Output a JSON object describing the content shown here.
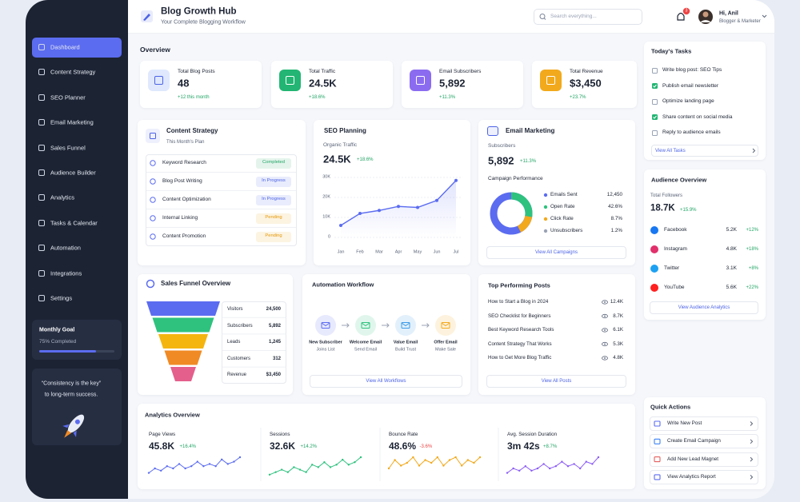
{
  "header": {
    "title": "Blog Growth Hub",
    "subtitle": "Your Complete Blogging Workflow",
    "search_placeholder": "Search everything...",
    "notification_count": "3",
    "user_name": "Hi, Anil",
    "user_role": "Blogger & Marketer"
  },
  "sidebar": {
    "nav": [
      "Dashboard",
      "Content Strategy",
      "SEO Planner",
      "Email Marketing",
      "Sales Funnel",
      "Audience Builder",
      "Analytics",
      "Tasks & Calendar",
      "Automation",
      "Integrations",
      "Settings"
    ],
    "monthly_goal": {
      "title": "Monthly Goal",
      "label": "75% Completed",
      "value": 75
    },
    "quote": [
      "“Consistency is the key”",
      "to long-term success."
    ]
  },
  "overview": {
    "title": "Overview",
    "stats": [
      {
        "label": "Total Blog Posts",
        "value": "48",
        "change": "+12 this month",
        "color": "#dfe8fd"
      },
      {
        "label": "Total Traffic",
        "value": "24.5K",
        "change": "+18.6%",
        "color": "#22b573"
      },
      {
        "label": "Email Subscribers",
        "value": "5,892",
        "change": "+11.3%",
        "color": "#8b6cf0"
      },
      {
        "label": "Total Revenue",
        "value": "$3,450",
        "change": "+23.7%",
        "color": "#f2a91c"
      }
    ]
  },
  "tasks": {
    "title": "Today's Tasks",
    "items": [
      {
        "text": "Write blog post: SEO Tips",
        "done": false
      },
      {
        "text": "Publish email newsletter",
        "done": true
      },
      {
        "text": "Optimize landing page",
        "done": false
      },
      {
        "text": "Share content on social media",
        "done": true
      },
      {
        "text": "Reply to audience emails",
        "done": false
      }
    ],
    "button": "View All Tasks"
  },
  "content_strategy": {
    "title": "Content Strategy",
    "subtitle": "This Month's Plan",
    "items": [
      {
        "name": "Keyword Research",
        "status": "Completed",
        "color": "#22a565"
      },
      {
        "name": "Blog Post Writing",
        "status": "In Progress",
        "color": "#4c63e6"
      },
      {
        "name": "Content Optimization",
        "status": "In Progress",
        "color": "#4c63e6"
      },
      {
        "name": "Internal Linking",
        "status": "Pending",
        "color": "#e59a0c"
      },
      {
        "name": "Content Promotion",
        "status": "Pending",
        "color": "#e59a0c"
      }
    ]
  },
  "seo_planning": {
    "title": "SEO Planning",
    "metric_label": "Organic Traffic",
    "value": "24.5K",
    "change": "+18.6%",
    "chart": {
      "type": "line",
      "categories": [
        "Jan",
        "Feb",
        "Mar",
        "Apr",
        "May",
        "Jun",
        "Jul"
      ],
      "values": [
        6000,
        12000,
        13500,
        15500,
        15000,
        18500,
        28500
      ],
      "ylim": [
        0,
        30000
      ],
      "yticks": [
        0,
        {
          "value": 10000,
          "label": "10K"
        },
        {
          "value": 20000,
          "label": "20K"
        },
        {
          "value": 30000,
          "label": "30K"
        }
      ],
      "color": "#5b6cf0",
      "grid": true
    }
  },
  "email_marketing": {
    "title": "Email Marketing",
    "subscribers_label": "Subscribers",
    "value": "5,892",
    "change": "+11.3%",
    "campaign_title": "Campaign Performance",
    "legend": [
      {
        "label": "Emails Sent",
        "value": "12,450",
        "color": "#5b6cf0"
      },
      {
        "label": "Open Rate",
        "value": "42.6%",
        "color": "#2ec27e"
      },
      {
        "label": "Click Rate",
        "value": "8.7%",
        "color": "#f2a91c"
      },
      {
        "label": "Unsubscribers",
        "value": "1.2%",
        "color": "#9aa3b5"
      }
    ],
    "button": "View All Campaigns"
  },
  "audience": {
    "title": "Audience Overview",
    "followers_label": "Total Followers",
    "value": "18.7K",
    "change": "+15.9%",
    "platforms": [
      {
        "name": "Facebook",
        "value": "5.2K",
        "change": "+12%",
        "color": "#1877f2"
      },
      {
        "name": "Instagram",
        "value": "4.8K",
        "change": "+18%",
        "color": "#e1306c"
      },
      {
        "name": "Twitter",
        "value": "3.1K",
        "change": "+8%",
        "color": "#1da1f2"
      },
      {
        "name": "YouTube",
        "value": "5.6K",
        "change": "+22%",
        "color": "#ff2020"
      }
    ],
    "button": "View Audience Analytics"
  },
  "sales_funnel": {
    "title": "Sales Funnel Overview",
    "stages": [
      {
        "name": "Visitors",
        "value": "24,500",
        "color": "#5b6cf0"
      },
      {
        "name": "Subscribers",
        "value": "5,892",
        "color": "#2ec27e"
      },
      {
        "name": "Leads",
        "value": "1,245",
        "color": "#f5b50f"
      },
      {
        "name": "Customers",
        "value": "312",
        "color": "#f08a24"
      },
      {
        "name": "Revenue",
        "value": "$3,450",
        "color": "#e45f8c"
      }
    ]
  },
  "automation": {
    "title": "Automation Workflow",
    "steps": [
      {
        "title": "New Subscriber",
        "subtitle": "Joins List",
        "color": "#5b6cf0"
      },
      {
        "title": "Welcome Email",
        "subtitle": "Send Email",
        "color": "#2ec27e"
      },
      {
        "title": "Value Email",
        "subtitle": "Build Trust",
        "color": "#3b9be8"
      },
      {
        "title": "Offer Email",
        "subtitle": "Make Sale",
        "color": "#f2a91c"
      }
    ],
    "button": "View All Workflows"
  },
  "top_posts": {
    "title": "Top Performing Posts",
    "posts": [
      {
        "title": "How to Start a Blog in 2024",
        "views": "12.4K"
      },
      {
        "title": "SEO Checklist for Beginners",
        "views": "8.7K"
      },
      {
        "title": "Best Keyword Research Tools",
        "views": "6.1K"
      },
      {
        "title": "Content Strategy That Works",
        "views": "5.3K"
      },
      {
        "title": "How to Get More Blog Traffic",
        "views": "4.8K"
      }
    ],
    "button": "View All Posts"
  },
  "analytics": {
    "title": "Analytics Overview",
    "metrics": [
      {
        "label": "Page Views",
        "value": "45.8K",
        "change": "+16.4%",
        "color": "#5b6cf0",
        "trend": [
          3,
          5,
          4,
          6,
          5,
          7,
          5,
          6,
          8,
          6,
          7,
          6,
          9,
          7,
          8,
          10
        ]
      },
      {
        "label": "Sessions",
        "value": "32.6K",
        "change": "+14.2%",
        "color": "#2ec27e",
        "trend": [
          2,
          3,
          4,
          3,
          5,
          4,
          3,
          6,
          5,
          7,
          5,
          6,
          8,
          6,
          7,
          9
        ]
      },
      {
        "label": "Bounce Rate",
        "value": "48.6%",
        "change": "-3.6%",
        "color": "#f2a91c",
        "trend": [
          4,
          7,
          5,
          6,
          8,
          5,
          7,
          6,
          8,
          5,
          7,
          8,
          5,
          7,
          6,
          8
        ]
      },
      {
        "label": "Avg. Session Duration",
        "value": "3m 42s",
        "change": "+8.7%",
        "color": "#8b5cf6",
        "trend": [
          3,
          5,
          4,
          6,
          4,
          5,
          7,
          5,
          6,
          8,
          6,
          7,
          5,
          8,
          7,
          10
        ]
      }
    ]
  },
  "quick_actions": {
    "title": "Quick Actions",
    "actions": [
      {
        "label": "Write New Post",
        "color": "#5b6cf0"
      },
      {
        "label": "Create Email Campaign",
        "color": "#3b82f6"
      },
      {
        "label": "Add New Lead Magnet",
        "color": "#e45f5f"
      },
      {
        "label": "View Analytics Report",
        "color": "#5b6cf0"
      }
    ]
  }
}
